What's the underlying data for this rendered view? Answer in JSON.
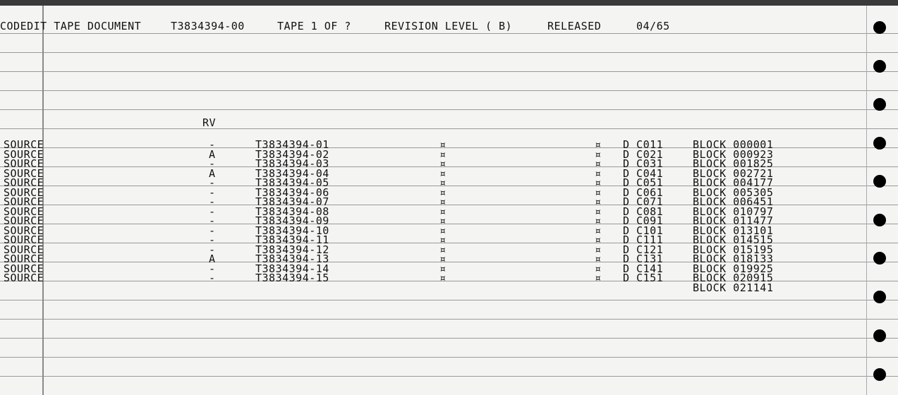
{
  "header": {
    "title": "CODEDIT TAPE DOCUMENT",
    "tape_id": "T3834394-00",
    "tape_count": "TAPE 1 OF ?",
    "revision": "REVISION LEVEL ( B)",
    "status": "RELEASED",
    "date": "04/65"
  },
  "table": {
    "rv_header": "RV",
    "rows": [
      [
        "SOURCE",
        "-",
        "T3834394-01",
        "¤",
        "¤",
        "D C011"
      ],
      [
        "SOURCE",
        "A",
        "T3834394-02",
        "¤",
        "¤",
        "D C021"
      ],
      [
        "SOURCE",
        "-",
        "T3834394-03",
        "¤",
        "¤",
        "D C031"
      ],
      [
        "SOURCE",
        "A",
        "T3834394-04",
        "¤",
        "¤",
        "D C041"
      ],
      [
        "SOURCE",
        "-",
        "T3834394-05",
        "¤",
        "¤",
        "D C051"
      ],
      [
        "SOURCE",
        "-",
        "T3834394-06",
        "¤",
        "¤",
        "D C061"
      ],
      [
        "SOURCE",
        "-",
        "T3834394-07",
        "¤",
        "¤",
        "D C071"
      ],
      [
        "SOURCE",
        "-",
        "T3834394-08",
        "¤",
        "¤",
        "D C081"
      ],
      [
        "SOURCE",
        "-",
        "T3834394-09",
        "¤",
        "¤",
        "D C091"
      ],
      [
        "SOURCE",
        "-",
        "T3834394-10",
        "¤",
        "¤",
        "D C101"
      ],
      [
        "SOURCE",
        "-",
        "T3834394-11",
        "¤",
        "¤",
        "D C111"
      ],
      [
        "SOURCE",
        "-",
        "T3834394-12",
        "¤",
        "¤",
        "D C121"
      ],
      [
        "SOURCE",
        "A",
        "T3834394-13",
        "¤",
        "¤",
        "D C131"
      ],
      [
        "SOURCE",
        "-",
        "T3834394-14",
        "¤",
        "¤",
        "D C141"
      ],
      [
        "SOURCE",
        "-",
        "T3834394-15",
        "¤",
        "¤",
        "D C151"
      ]
    ],
    "blocks": [
      "BLOCK 000001",
      "BLOCK 000923",
      "BLOCK 001825",
      "BLOCK 002721",
      "BLOCK 004177",
      "BLOCK 005305",
      "BLOCK 006451",
      "BLOCK 010797",
      "BLOCK 011477",
      "BLOCK 013101",
      "BLOCK 014515",
      "BLOCK 015195",
      "BLOCK 018133",
      "BLOCK 019925",
      "BLOCK 020915",
      "BLOCK 021141"
    ]
  }
}
